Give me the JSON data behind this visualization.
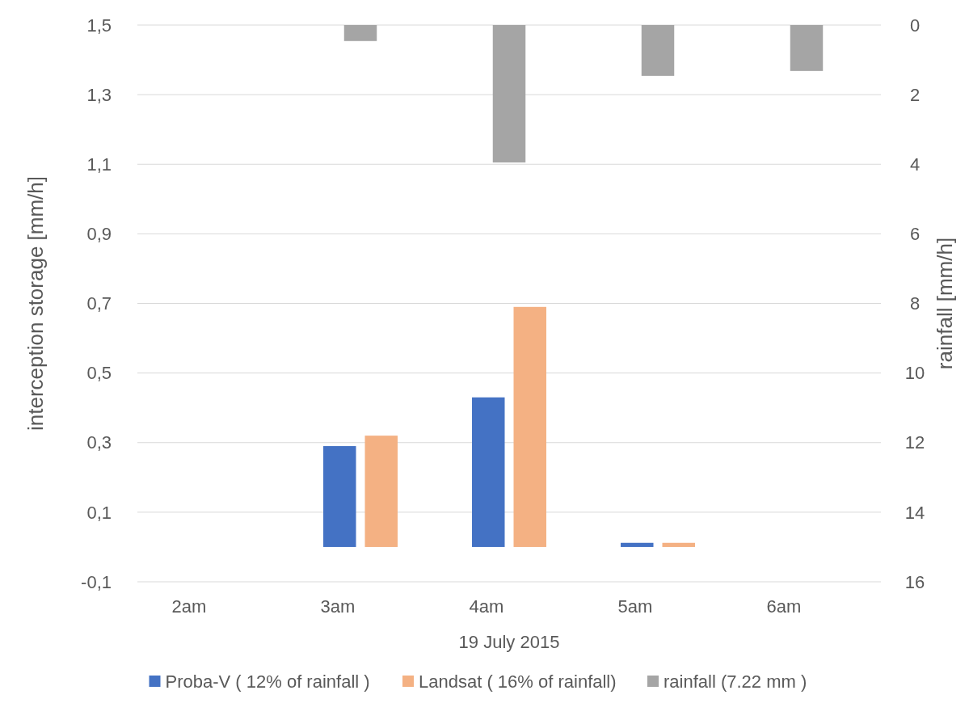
{
  "chart_data": {
    "type": "bar",
    "xlabel": "19 July 2015",
    "ylabel": "interception storage [mm/h]",
    "y2label": "rainfall [mm/h]",
    "categories": [
      "2am",
      "3am",
      "4am",
      "5am",
      "6am"
    ],
    "series": [
      {
        "name": "Proba-V ( 12% of rainfall )",
        "color": "#4472c4",
        "values": [
          null,
          0.29,
          0.43,
          0.012,
          null
        ]
      },
      {
        "name": "Landsat ( 16% of rainfall)",
        "color": "#f4b183",
        "values": [
          null,
          0.32,
          0.69,
          0.012,
          null
        ]
      },
      {
        "name": "rainfall (7.22 mm )",
        "color": "#a5a5a5",
        "axis": "y2",
        "values": [
          0,
          0.46,
          3.95,
          1.46,
          1.32
        ]
      }
    ],
    "ylim": [
      -0.1,
      1.5
    ],
    "yticks": [
      {
        "value": -0.1,
        "label": "-0,1"
      },
      {
        "value": 0.1,
        "label": "0,1"
      },
      {
        "value": 0.3,
        "label": "0,3"
      },
      {
        "value": 0.5,
        "label": "0,5"
      },
      {
        "value": 0.7,
        "label": "0,7"
      },
      {
        "value": 0.9,
        "label": "0,9"
      },
      {
        "value": 1.1,
        "label": "1,1"
      },
      {
        "value": 1.3,
        "label": "1,3"
      },
      {
        "value": 1.5,
        "label": "1,5"
      }
    ],
    "y2lim": [
      16,
      0
    ],
    "y2ticks": [
      16,
      14,
      12,
      10,
      8,
      6,
      4,
      2,
      0
    ],
    "grid": "y",
    "legend": "bottom"
  }
}
